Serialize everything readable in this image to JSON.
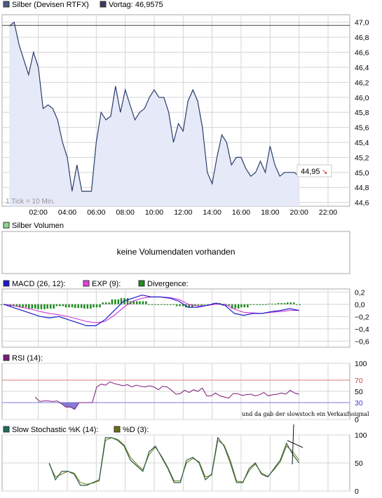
{
  "colors": {
    "price_line": "#2a3d6b",
    "price_fill": "#e6e9f7",
    "grid": "#d4d4d4",
    "macd": "#1a1acc",
    "exp": "#cc22cc",
    "divergence": "#1f8a1f",
    "rsi": "#7a1a7a",
    "rsi_fill": "#6a5acd",
    "rsi_upper": "#e07a7a",
    "rsi_lower": "#7a7ae0",
    "stoch_k": "#2e5b47",
    "stoch_d": "#6e7a12",
    "last_price_arrow": "#e02020"
  },
  "panels": {
    "price": {
      "legend": [
        {
          "label": "Silber (Devisen RTFX)",
          "color": "#4a5a85"
        },
        {
          "label": "Vortag: 46,9575",
          "color": "#3a3a60"
        }
      ],
      "tick_note": "1 Tick = 10 Min.",
      "last_price": "44,95",
      "y_ticks": [
        "47,0",
        "46,8",
        "46,6",
        "46,4",
        "46,2",
        "46,0",
        "45,8",
        "45,6",
        "45,4",
        "45,2",
        "45,0",
        "44,8",
        "44,6"
      ],
      "x_ticks": [
        "02:00",
        "04:00",
        "06:00",
        "08:00",
        "10:00",
        "12:00",
        "14:00",
        "16:00",
        "18:00",
        "20:00",
        "22:00"
      ]
    },
    "volume": {
      "legend": [
        {
          "label": "Silber Volumen",
          "color": "#8fd88f"
        }
      ],
      "message": "keine Volumendaten vorhanden"
    },
    "macd": {
      "legend": [
        {
          "label": "MACD (26, 12):",
          "color": "#1a1acc"
        },
        {
          "label": "EXP (9):",
          "color": "#e040e0"
        },
        {
          "label": "Divergence:",
          "color": "#1f8a1f"
        }
      ],
      "y_ticks": [
        "0,2",
        "0,0",
        "−0,2",
        "−0,4",
        "−0,6"
      ]
    },
    "rsi": {
      "legend": [
        {
          "label": "RSI (14):",
          "color": "#7a1a7a"
        }
      ],
      "y_ticks": [
        "100",
        "70",
        "50",
        "30",
        "0"
      ],
      "annotation": "und da gab der slowstoch ein Verkaufssignal"
    },
    "stochastic": {
      "legend": [
        {
          "label": "Slow Stochastic %K (14):",
          "color": "#1a6e5a"
        },
        {
          "label": "%D (3):",
          "color": "#6e6e10"
        }
      ],
      "y_ticks": [
        "100",
        "50",
        "0"
      ]
    }
  },
  "chart_data": [
    {
      "type": "line",
      "title": "Silber (Devisen RTFX)",
      "series": [
        {
          "name": "Silber (Devisen RTFX)",
          "x_hours": [
            0.0,
            0.33,
            0.67,
            1.0,
            1.33,
            1.67,
            2.0,
            2.33,
            2.67,
            3.0,
            3.33,
            3.67,
            4.0,
            4.33,
            4.67,
            5.0,
            5.33,
            5.67,
            6.0,
            6.33,
            6.67,
            7.0,
            7.33,
            7.67,
            8.0,
            8.33,
            8.67,
            9.0,
            9.33,
            9.67,
            10.0,
            10.33,
            10.67,
            11.0,
            11.33,
            11.67,
            12.0,
            12.33,
            12.67,
            13.0,
            13.33,
            13.67,
            14.0,
            14.33,
            14.67,
            15.0,
            15.33,
            15.67,
            16.0,
            16.33,
            16.67,
            17.0,
            17.33,
            17.67,
            18.0,
            18.33,
            18.67,
            19.0,
            19.33,
            19.67,
            20.0
          ],
          "values": [
            46.95,
            47.0,
            46.7,
            46.5,
            46.3,
            46.6,
            46.4,
            45.85,
            45.9,
            45.85,
            45.7,
            45.4,
            45.2,
            44.75,
            45.1,
            44.75,
            44.75,
            44.75,
            45.4,
            45.8,
            45.7,
            45.75,
            46.15,
            45.8,
            46.1,
            45.9,
            45.7,
            45.8,
            45.85,
            46.0,
            46.1,
            46.0,
            46.0,
            45.8,
            45.4,
            45.65,
            45.55,
            45.95,
            46.1,
            45.95,
            45.6,
            45.0,
            44.85,
            45.2,
            45.5,
            45.4,
            45.1,
            45.2,
            45.2,
            45.05,
            44.95,
            45.0,
            45.15,
            45.0,
            45.35,
            45.1,
            44.95,
            45.0,
            45.0,
            45.0,
            44.95
          ]
        }
      ],
      "ylim": [
        44.55,
        47.1
      ],
      "reference_line": {
        "name": "Vortag",
        "value": 46.9575
      }
    },
    {
      "type": "line",
      "title": "MACD (26, 12)",
      "series": [
        {
          "name": "MACD (26, 12)",
          "values": [
            0.0,
            -0.05,
            -0.1,
            -0.15,
            -0.2,
            -0.22,
            -0.2,
            -0.25,
            -0.3,
            -0.35,
            -0.35,
            -0.25,
            -0.1,
            0.05,
            0.1,
            0.15,
            0.12,
            0.12,
            0.1,
            0.05,
            -0.05,
            -0.05,
            -0.02,
            0.02,
            -0.02,
            -0.15,
            -0.18,
            -0.15,
            -0.15,
            -0.12,
            -0.1,
            -0.07,
            -0.1
          ]
        },
        {
          "name": "EXP (9)",
          "values": [
            0.0,
            -0.02,
            -0.05,
            -0.08,
            -0.12,
            -0.15,
            -0.17,
            -0.2,
            -0.24,
            -0.28,
            -0.3,
            -0.28,
            -0.18,
            -0.05,
            0.05,
            0.1,
            0.12,
            0.12,
            0.11,
            0.08,
            0.0,
            -0.03,
            -0.02,
            0.0,
            0.0,
            -0.08,
            -0.13,
            -0.14,
            -0.15,
            -0.13,
            -0.12,
            -0.1,
            -0.1
          ]
        },
        {
          "name": "Divergence",
          "values": [
            0.0,
            -0.03,
            -0.05,
            -0.07,
            -0.08,
            -0.07,
            -0.03,
            -0.05,
            -0.06,
            -0.07,
            -0.05,
            0.03,
            0.08,
            0.1,
            0.05,
            0.05,
            0.0,
            0.0,
            -0.01,
            -0.03,
            -0.05,
            -0.02,
            0.0,
            0.02,
            -0.02,
            -0.07,
            -0.05,
            -0.01,
            0.0,
            0.01,
            0.02,
            0.03,
            0.0
          ]
        }
      ],
      "ylim": [
        -0.7,
        0.25
      ]
    },
    {
      "type": "line",
      "title": "RSI (14)",
      "series": [
        {
          "name": "RSI (14)",
          "values": [
            40,
            32,
            33,
            33,
            32,
            33,
            28,
            22,
            22,
            18,
            30,
            30,
            30,
            30,
            58,
            63,
            61,
            67,
            64,
            62,
            60,
            62,
            58,
            61,
            59,
            58,
            60,
            58,
            53,
            59,
            58,
            52,
            45,
            46,
            52,
            48,
            53,
            50,
            56,
            42,
            42,
            47,
            42,
            40,
            38,
            46,
            46,
            43,
            44,
            45,
            42,
            44,
            48,
            42,
            44,
            45,
            47,
            45,
            52,
            47,
            45
          ]
        }
      ],
      "ylim": [
        0,
        100
      ],
      "reference_lines": [
        70,
        30
      ]
    },
    {
      "type": "line",
      "title": "Slow Stochastic",
      "series": [
        {
          "name": "Slow Stochastic %K (14)",
          "values": [
            50,
            20,
            35,
            35,
            30,
            10,
            10,
            15,
            20,
            95,
            95,
            90,
            80,
            55,
            45,
            35,
            70,
            80,
            60,
            40,
            15,
            15,
            55,
            60,
            50,
            20,
            30,
            95,
            80,
            50,
            15,
            15,
            40,
            50,
            30,
            25,
            40,
            55,
            85,
            65,
            50
          ]
        },
        {
          "name": "%D (3)",
          "values": [
            48,
            25,
            30,
            35,
            32,
            15,
            12,
            14,
            18,
            90,
            95,
            92,
            82,
            60,
            48,
            38,
            65,
            78,
            62,
            42,
            18,
            18,
            50,
            58,
            52,
            25,
            28,
            90,
            82,
            55,
            18,
            16,
            36,
            48,
            32,
            26,
            38,
            52,
            80,
            70,
            55
          ]
        }
      ],
      "ylim": [
        0,
        100
      ]
    }
  ]
}
